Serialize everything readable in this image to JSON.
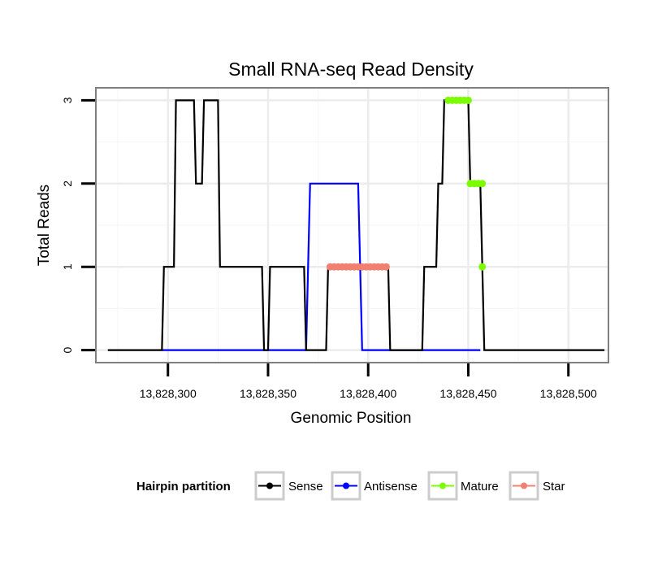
{
  "chart_data": {
    "type": "line",
    "title": "Small RNA-seq Read Density",
    "xlabel": "Genomic Position",
    "ylabel": "Total Reads",
    "xlim": [
      13828264,
      13828520
    ],
    "ylim": [
      -0.15,
      3.15
    ],
    "x_ticks": [
      13828300,
      13828350,
      13828400,
      13828450,
      13828500
    ],
    "x_tick_labels": [
      "13,828,300",
      "13,828,350",
      "13,828,400",
      "13,828,450",
      "13,828,500"
    ],
    "y_ticks": [
      0,
      1,
      2,
      3
    ],
    "y_tick_labels": [
      "0",
      "1",
      "2",
      "3"
    ],
    "grid": true,
    "legend": {
      "title": "Hairpin partition",
      "position": "bottom",
      "entries": [
        "Sense",
        "Antisense",
        "Mature",
        "Star"
      ]
    },
    "series": [
      {
        "name": "Sense",
        "color": "#000000",
        "style": "line",
        "points": [
          [
            13828270,
            0
          ],
          [
            13828297,
            0
          ],
          [
            13828298,
            1
          ],
          [
            13828303,
            1
          ],
          [
            13828304,
            3
          ],
          [
            13828313,
            3
          ],
          [
            13828314,
            2
          ],
          [
            13828317,
            2
          ],
          [
            13828318,
            3
          ],
          [
            13828325,
            3
          ],
          [
            13828326,
            1
          ],
          [
            13828347,
            1
          ],
          [
            13828348,
            0
          ],
          [
            13828350,
            0
          ],
          [
            13828351,
            1
          ],
          [
            13828368,
            1
          ],
          [
            13828369,
            0
          ],
          [
            13828379,
            0
          ],
          [
            13828380,
            1
          ],
          [
            13828410,
            1
          ],
          [
            13828411,
            0
          ],
          [
            13828427,
            0
          ],
          [
            13828428,
            1
          ],
          [
            13828434,
            1
          ],
          [
            13828435,
            2
          ],
          [
            13828437,
            2
          ],
          [
            13828438,
            3
          ],
          [
            13828450,
            3
          ],
          [
            13828451,
            2
          ],
          [
            13828456,
            2
          ],
          [
            13828458,
            0
          ],
          [
            13828518,
            0
          ]
        ]
      },
      {
        "name": "Antisense",
        "color": "#0000ff",
        "style": "line",
        "points": [
          [
            13828297,
            0
          ],
          [
            13828369,
            0
          ],
          [
            13828371,
            2
          ],
          [
            13828395,
            2
          ],
          [
            13828397,
            0
          ],
          [
            13828456,
            0
          ]
        ]
      },
      {
        "name": "Mature",
        "color": "#7cfc00",
        "style": "points",
        "points": [
          [
            13828440,
            3
          ],
          [
            13828442,
            3
          ],
          [
            13828444,
            3
          ],
          [
            13828446,
            3
          ],
          [
            13828448,
            3
          ],
          [
            13828450,
            3
          ],
          [
            13828451,
            2
          ],
          [
            13828453,
            2
          ],
          [
            13828455,
            2
          ],
          [
            13828457,
            2
          ],
          [
            13828457,
            1
          ]
        ]
      },
      {
        "name": "Star",
        "color": "#f08070",
        "style": "points",
        "points": [
          [
            13828381,
            1
          ],
          [
            13828383,
            1
          ],
          [
            13828385,
            1
          ],
          [
            13828387,
            1
          ],
          [
            13828389,
            1
          ],
          [
            13828391,
            1
          ],
          [
            13828393,
            1
          ],
          [
            13828395,
            1
          ],
          [
            13828397,
            1
          ],
          [
            13828399,
            1
          ],
          [
            13828401,
            1
          ],
          [
            13828403,
            1
          ],
          [
            13828405,
            1
          ],
          [
            13828407,
            1
          ],
          [
            13828409,
            1
          ]
        ]
      }
    ]
  }
}
